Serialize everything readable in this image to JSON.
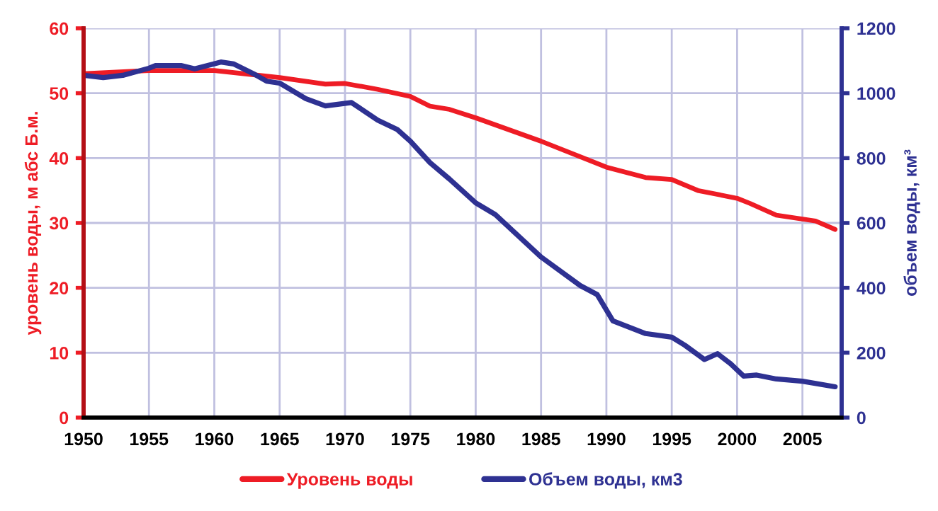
{
  "chart_data": {
    "type": "line",
    "ylabel": "уровень воды, м абс Б.м.",
    "y2label": "объем воды, км³",
    "xlim": [
      1950,
      2008
    ],
    "xticks": [
      1950,
      1955,
      1960,
      1965,
      1970,
      1975,
      1980,
      1985,
      1990,
      1995,
      2000,
      2005
    ],
    "ylim": [
      0,
      60
    ],
    "yticks": [
      0,
      10,
      20,
      30,
      40,
      50,
      60
    ],
    "y2lim": [
      0,
      1200
    ],
    "y2ticks": [
      0,
      200,
      400,
      600,
      800,
      1000,
      1200
    ],
    "grid": true,
    "legend": "bottom",
    "marker": "none",
    "line_style": "solid",
    "series": [
      {
        "name": "Уровень воды",
        "color": "#ee1c25",
        "x": [
          1950,
          1955,
          1960,
          1965,
          1968.5,
          1970,
          1972.5,
          1975,
          1976.5,
          1978,
          1980,
          1985,
          1990,
          1993,
          1995,
          1997,
          2000,
          2001,
          2003,
          2005,
          2006,
          2007.5
        ],
        "values": [
          53,
          53.5,
          53.5,
          52.4,
          51.4,
          51.5,
          50.6,
          49.5,
          48,
          47.5,
          46.2,
          42.6,
          38.6,
          37,
          36.7,
          35,
          33.8,
          33,
          31.2,
          30.6,
          30.3,
          29
        ]
      },
      {
        "name": "Объем воды, км3",
        "color": "#2e3192",
        "axis": "y2",
        "x": [
          1950,
          1951.5,
          1953,
          1955,
          1955.5,
          1957.5,
          1958.5,
          1960.5,
          1961.5,
          1963,
          1964,
          1965,
          1967,
          1968.5,
          1970.5,
          1972.5,
          1974,
          1975,
          1976.5,
          1978,
          1980,
          1981.5,
          1985,
          1988,
          1989.3,
          1990.5,
          1993,
          1995,
          1996,
          1997.5,
          1998.5,
          1999.5,
          2000.5,
          2001.5,
          2003,
          2005,
          2007.5
        ],
        "values": [
          1055,
          1048,
          1055,
          1077,
          1085,
          1085,
          1075,
          1096,
          1090,
          1060,
          1037,
          1031,
          983,
          961,
          971,
          917,
          888,
          852,
          786,
          735,
          662,
          626,
          495,
          407,
          379,
          298,
          259,
          248,
          223,
          179,
          197,
          166,
          128,
          131,
          119,
          112,
          95
        ]
      }
    ]
  }
}
